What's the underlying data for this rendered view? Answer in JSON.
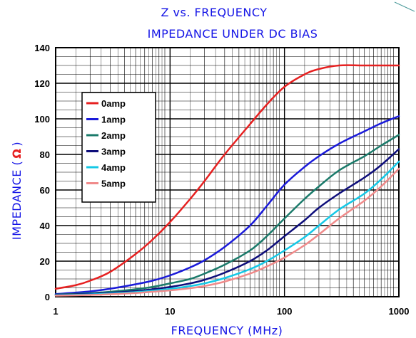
{
  "chart_data": {
    "type": "line",
    "title": "Z vs. FREQUENCY",
    "subtitle": "IMPEDANCE UNDER DC BIAS",
    "xlabel": "FREQUENCY (MHz)",
    "ylabel": "IMPEDANCE (Ω)",
    "ylabel_text": "IMPEDANCE (",
    "ylabel_symbol": "Ω",
    "ylabel_close": ")",
    "x_scale": "log",
    "xlim": [
      1,
      1000
    ],
    "ylim": [
      0,
      140
    ],
    "x_ticks": [
      1,
      10,
      100,
      1000
    ],
    "x_tick_labels": [
      "1",
      "10",
      "100",
      "1000"
    ],
    "y_ticks": [
      0,
      20,
      40,
      60,
      80,
      100,
      120,
      140
    ],
    "y_tick_labels": [
      "0",
      "20",
      "40",
      "60",
      "80",
      "100",
      "120",
      "140"
    ],
    "grid": true,
    "legend_position": "upper-left",
    "series": [
      {
        "name": "0amp",
        "color": "#e62020",
        "points": [
          [
            1,
            4.5
          ],
          [
            1.5,
            6.5
          ],
          [
            2,
            9
          ],
          [
            3,
            14
          ],
          [
            5,
            24
          ],
          [
            7,
            32
          ],
          [
            10,
            42
          ],
          [
            15,
            55
          ],
          [
            20,
            65
          ],
          [
            30,
            80
          ],
          [
            50,
            97
          ],
          [
            70,
            108
          ],
          [
            100,
            118
          ],
          [
            150,
            125
          ],
          [
            200,
            128
          ],
          [
            300,
            130
          ],
          [
            500,
            130
          ],
          [
            700,
            130
          ],
          [
            1000,
            130
          ]
        ]
      },
      {
        "name": "1amp",
        "color": "#1a1ad9",
        "points": [
          [
            1,
            1.5
          ],
          [
            2,
            3
          ],
          [
            3,
            4.5
          ],
          [
            5,
            7
          ],
          [
            7,
            9
          ],
          [
            10,
            12
          ],
          [
            15,
            16.5
          ],
          [
            20,
            20.5
          ],
          [
            30,
            28
          ],
          [
            50,
            40
          ],
          [
            70,
            51
          ],
          [
            100,
            63
          ],
          [
            150,
            73
          ],
          [
            200,
            79
          ],
          [
            300,
            86
          ],
          [
            500,
            93
          ],
          [
            700,
            97.5
          ],
          [
            1000,
            101.5
          ]
        ]
      },
      {
        "name": "2amp",
        "color": "#1a7a6a",
        "points": [
          [
            1,
            1.2
          ],
          [
            2,
            2
          ],
          [
            3,
            2.8
          ],
          [
            5,
            4.2
          ],
          [
            7,
            5.5
          ],
          [
            10,
            7.5
          ],
          [
            15,
            10
          ],
          [
            20,
            13
          ],
          [
            30,
            18
          ],
          [
            50,
            26
          ],
          [
            70,
            34
          ],
          [
            100,
            44
          ],
          [
            150,
            55
          ],
          [
            200,
            62
          ],
          [
            300,
            71
          ],
          [
            500,
            79
          ],
          [
            700,
            85
          ],
          [
            1000,
            91
          ]
        ]
      },
      {
        "name": "3amp",
        "color": "#0d0d7a",
        "points": [
          [
            1,
            1
          ],
          [
            2,
            1.6
          ],
          [
            3,
            2.2
          ],
          [
            5,
            3.2
          ],
          [
            7,
            4.2
          ],
          [
            10,
            5.5
          ],
          [
            15,
            7.5
          ],
          [
            20,
            9.5
          ],
          [
            30,
            13.5
          ],
          [
            50,
            20
          ],
          [
            70,
            26
          ],
          [
            100,
            34
          ],
          [
            150,
            43
          ],
          [
            200,
            50
          ],
          [
            300,
            58
          ],
          [
            500,
            67
          ],
          [
            700,
            74
          ],
          [
            1000,
            83
          ]
        ]
      },
      {
        "name": "4amp",
        "color": "#14c8e6",
        "points": [
          [
            1,
            0.8
          ],
          [
            2,
            1.3
          ],
          [
            3,
            1.8
          ],
          [
            5,
            2.6
          ],
          [
            7,
            3.4
          ],
          [
            10,
            4.4
          ],
          [
            15,
            6
          ],
          [
            20,
            7.5
          ],
          [
            30,
            10.5
          ],
          [
            50,
            15.5
          ],
          [
            70,
            20
          ],
          [
            100,
            26
          ],
          [
            150,
            33.5
          ],
          [
            200,
            40
          ],
          [
            300,
            49
          ],
          [
            500,
            58
          ],
          [
            700,
            66
          ],
          [
            1000,
            76
          ]
        ]
      },
      {
        "name": "5amp",
        "color": "#f08a8a",
        "points": [
          [
            1,
            0.6
          ],
          [
            2,
            1
          ],
          [
            3,
            1.4
          ],
          [
            5,
            2.1
          ],
          [
            7,
            2.8
          ],
          [
            10,
            3.6
          ],
          [
            15,
            4.8
          ],
          [
            20,
            6
          ],
          [
            30,
            8.5
          ],
          [
            50,
            13
          ],
          [
            70,
            17
          ],
          [
            100,
            22
          ],
          [
            150,
            29
          ],
          [
            200,
            35
          ],
          [
            300,
            44
          ],
          [
            500,
            54
          ],
          [
            700,
            62
          ],
          [
            1000,
            72
          ]
        ]
      }
    ]
  }
}
